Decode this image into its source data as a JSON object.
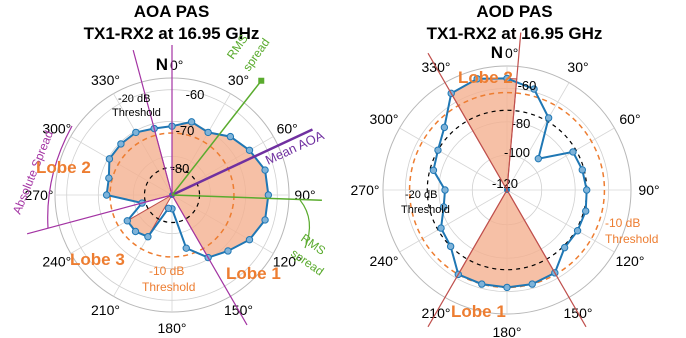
{
  "chart_data": [
    {
      "type": "polar",
      "title": "AOA PAS",
      "subtitle": "TX1-RX2 at 16.95 GHz",
      "north_label": "N",
      "angle_ticks": [
        "0°",
        "30°",
        "60°",
        "90°",
        "120°",
        "150°",
        "180°",
        "210°",
        "240°",
        "270°",
        "300°",
        "330°"
      ],
      "radial_ticks": [
        "-60",
        "-70",
        "-80"
      ],
      "series": [
        {
          "values_deg": [
            0,
            15,
            30,
            45,
            60,
            75,
            90,
            105,
            120,
            135,
            150,
            165,
            180,
            195,
            210,
            225,
            240,
            255,
            270,
            285,
            300,
            315,
            330,
            345
          ],
          "values_db": [
            -72,
            -70,
            -71,
            -68,
            -66,
            -64,
            -64,
            -64,
            -66,
            -69,
            -71,
            -76,
            -88,
            -88,
            -78,
            -77,
            -77,
            -83,
            -73,
            -73,
            -71,
            -71,
            -71,
            -72
          ]
        }
      ],
      "lobes": [
        {
          "label": "Lobe 1",
          "start_deg": 0,
          "end_deg": 150
        },
        {
          "label": "Lobe 2",
          "start_deg": 255,
          "end_deg": 345
        },
        {
          "label": "Lobe 3",
          "start_deg": 210,
          "end_deg": 240
        }
      ],
      "threshold_labels": {
        "minus10": [
          "-10 dB",
          "Threshold"
        ],
        "minus20": [
          "-20 dB",
          "Threshold"
        ]
      },
      "annotations": {
        "mean_aoa": "Mean AOA",
        "rms_spread_1": [
          "RMS",
          "spread"
        ],
        "rms_spread_2": [
          "RMS",
          "spread"
        ],
        "absolute_spread": "Absolute Spread"
      },
      "colors": {
        "series": "#1f77b4",
        "lobe_fill": "#f4b090",
        "lobe_edge": "#c0504d",
        "threshold10": "#ed7d31",
        "mean": "#7030a0",
        "rms": "#5aab2e",
        "abs": "#a333a3",
        "lobe_text": "#ed7d31"
      }
    },
    {
      "type": "polar",
      "title": "AOD PAS",
      "subtitle": "TX1-RX2 at 16.95 GHz",
      "north_label": "N",
      "angle_ticks": [
        "0°",
        "30°",
        "60°",
        "90°",
        "120°",
        "150°",
        "180°",
        "210°",
        "240°",
        "270°",
        "300°",
        "330°"
      ],
      "radial_ticks": [
        "-60",
        "-80",
        "-100",
        "-120"
      ],
      "series": [
        {
          "values_deg": [
            0,
            15,
            30,
            45,
            60,
            75,
            90,
            105,
            120,
            135,
            150,
            165,
            180,
            195,
            210,
            225,
            240,
            255,
            270,
            285,
            300,
            315,
            330,
            345
          ],
          "values_db": [
            -62,
            -66,
            -78,
            -100,
            -82,
            -81,
            -80,
            -79,
            -79,
            -79,
            -71,
            -70,
            -70,
            -70,
            -70,
            -80,
            -82,
            -88,
            -90,
            -82,
            -80,
            -75,
            -62,
            -60
          ]
        }
      ],
      "lobes": [
        {
          "label": "Lobe 1",
          "start_deg": 150,
          "end_deg": 210
        },
        {
          "label": "Lobe 2",
          "start_deg": 330,
          "end_deg": 5
        }
      ],
      "threshold_labels": {
        "minus10": [
          "-10 dB",
          "Threshold"
        ],
        "minus20": [
          "-20 dB",
          "Threshold"
        ]
      },
      "colors": {
        "series": "#1f77b4",
        "lobe_fill": "#f4b090",
        "lobe_edge": "#c0504d",
        "threshold10": "#ed7d31",
        "mean": "#7030a0",
        "lobe_text": "#ed7d31"
      }
    }
  ]
}
